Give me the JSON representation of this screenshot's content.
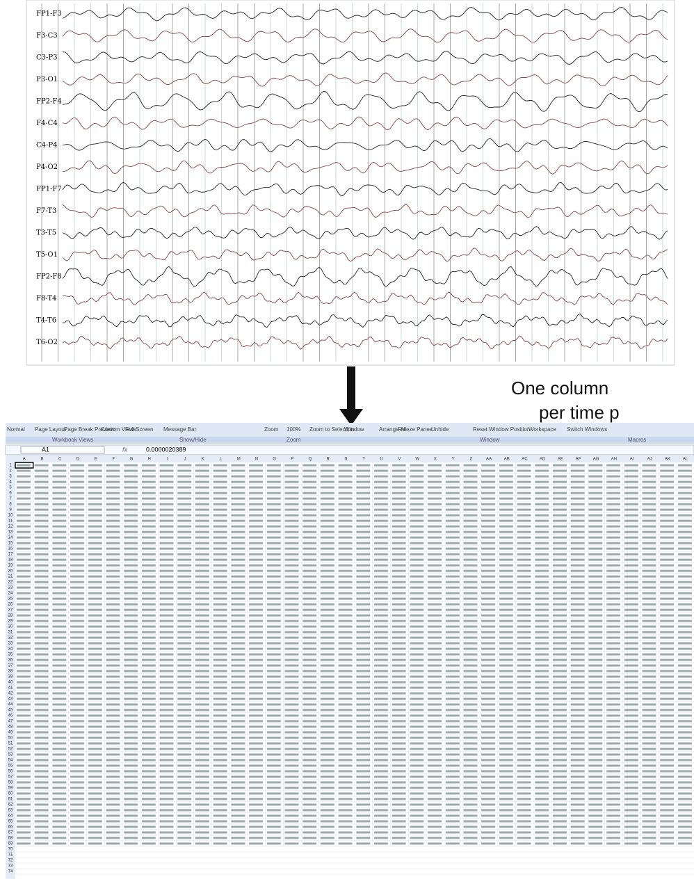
{
  "eeg": {
    "channels": [
      "FP1-F3",
      "F3-C3",
      "C3-P3",
      "P3-O1",
      "FP2-F4",
      "F4-C4",
      "C4-P4",
      "P4-O2",
      "FP1-F7",
      "F7-T3",
      "T3-T5",
      "T5-O1",
      "FP2-F8",
      "F8-T4",
      "T4-T6",
      "T6-O2"
    ]
  },
  "caption": {
    "lines": [
      "One column",
      "per time p"
    ]
  },
  "spreadsheet": {
    "ribbon": {
      "buttons": [
        "Normal",
        "Page Layout",
        "Page Break Preview",
        "Custom Views",
        "Full Screen",
        "Message Bar",
        "Zoom",
        "100%",
        "Zoom to Selection",
        "Window",
        "Arrange All",
        "Freeze Panes",
        "Unhide",
        "Reset Window Position",
        "Workspace",
        "Switch Windows"
      ],
      "groups": [
        "Workbook Views",
        "Show/Hide",
        "Zoom",
        "Window",
        "Macros"
      ]
    },
    "name_box": "A1",
    "formula": "0.0000020389",
    "columns": [
      "A",
      "B",
      "C",
      "D",
      "E",
      "F",
      "G",
      "H",
      "I",
      "J",
      "K",
      "L",
      "M",
      "N",
      "O",
      "P",
      "Q",
      "R",
      "S",
      "T",
      "U",
      "V",
      "W",
      "X",
      "Y",
      "Z",
      "AA",
      "AB",
      "AC",
      "AD",
      "AE",
      "AF",
      "AG",
      "AH",
      "AI",
      "AJ",
      "AK",
      "AL"
    ],
    "rows": [
      1,
      2,
      3,
      4,
      5,
      6,
      7,
      8,
      9,
      10,
      11,
      12,
      13,
      14,
      15,
      16,
      17,
      18,
      19,
      20,
      21,
      22,
      23,
      24,
      25,
      26,
      27,
      28,
      29,
      30,
      31,
      32,
      33,
      34,
      35,
      36,
      37,
      38,
      39,
      40,
      41,
      42,
      43,
      44,
      45,
      46,
      47,
      48,
      49,
      50,
      51,
      52,
      53,
      54,
      55,
      56,
      57,
      58,
      59,
      60,
      61,
      62,
      63,
      64,
      65,
      66,
      67,
      68,
      69,
      70,
      71,
      72,
      73,
      74
    ]
  }
}
